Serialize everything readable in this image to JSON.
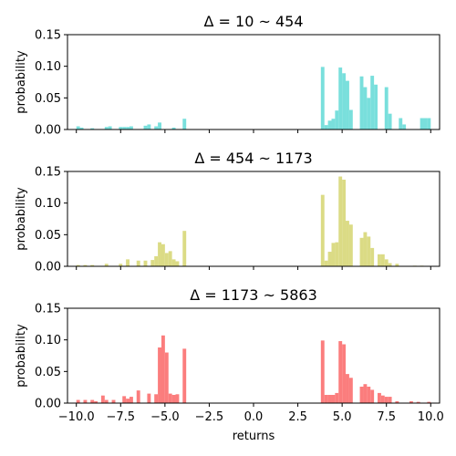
{
  "chart_data": {
    "type": "bar",
    "xlabel": "returns",
    "ylabel": "probability",
    "xlim": [
      -10.5,
      10.5
    ],
    "ylim": [
      0,
      0.15
    ],
    "bin_width": 0.2,
    "x_ticks": [
      -10,
      -7.5,
      -5,
      -2.5,
      0,
      2.5,
      5,
      7.5,
      10
    ],
    "x_tick_labels": [
      "−10.0",
      "−7.5",
      "−5.0",
      "−2.5",
      "0.0",
      "2.5",
      "5.0",
      "7.5",
      "10.0"
    ],
    "y_ticks": [
      0,
      0.05,
      0.1,
      0.15
    ],
    "y_tick_labels": [
      "0.00",
      "0.05",
      "0.10",
      "0.15"
    ],
    "panels": [
      {
        "title": "Δ = 10 ~ 454",
        "color": "#79dfdc",
        "bars": [
          {
            "x": -9.9,
            "y": 0.005
          },
          {
            "x": -9.7,
            "y": 0.003
          },
          {
            "x": -9.1,
            "y": 0.002
          },
          {
            "x": -8.3,
            "y": 0.004
          },
          {
            "x": -8.1,
            "y": 0.005
          },
          {
            "x": -7.5,
            "y": 0.004
          },
          {
            "x": -7.3,
            "y": 0.004
          },
          {
            "x": -7.1,
            "y": 0.004
          },
          {
            "x": -6.9,
            "y": 0.005
          },
          {
            "x": -6.1,
            "y": 0.006
          },
          {
            "x": -5.9,
            "y": 0.008
          },
          {
            "x": -5.5,
            "y": 0.005
          },
          {
            "x": -5.3,
            "y": 0.011
          },
          {
            "x": -4.5,
            "y": 0.003
          },
          {
            "x": -3.9,
            "y": 0.017
          },
          {
            "x": 3.9,
            "y": 0.099
          },
          {
            "x": 4.1,
            "y": 0.007
          },
          {
            "x": 4.3,
            "y": 0.014
          },
          {
            "x": 4.5,
            "y": 0.017
          },
          {
            "x": 4.7,
            "y": 0.03
          },
          {
            "x": 4.9,
            "y": 0.098
          },
          {
            "x": 5.1,
            "y": 0.089
          },
          {
            "x": 5.3,
            "y": 0.077
          },
          {
            "x": 5.5,
            "y": 0.031
          },
          {
            "x": 6.1,
            "y": 0.084
          },
          {
            "x": 6.3,
            "y": 0.067
          },
          {
            "x": 6.5,
            "y": 0.05
          },
          {
            "x": 6.7,
            "y": 0.085
          },
          {
            "x": 6.9,
            "y": 0.071
          },
          {
            "x": 7.5,
            "y": 0.067
          },
          {
            "x": 7.7,
            "y": 0.025
          },
          {
            "x": 8.3,
            "y": 0.018
          },
          {
            "x": 8.5,
            "y": 0.008
          },
          {
            "x": 9.5,
            "y": 0.018
          },
          {
            "x": 9.7,
            "y": 0.018
          },
          {
            "x": 9.9,
            "y": 0.018
          }
        ]
      },
      {
        "title": "Δ = 454 ~ 1173",
        "color": "#dbdb85",
        "bars": [
          {
            "x": -9.9,
            "y": 0.002
          },
          {
            "x": -9.5,
            "y": 0.002
          },
          {
            "x": -9.1,
            "y": 0.002
          },
          {
            "x": -8.3,
            "y": 0.004
          },
          {
            "x": -7.5,
            "y": 0.004
          },
          {
            "x": -7.1,
            "y": 0.011
          },
          {
            "x": -6.5,
            "y": 0.009
          },
          {
            "x": -6.1,
            "y": 0.009
          },
          {
            "x": -5.7,
            "y": 0.01
          },
          {
            "x": -5.5,
            "y": 0.016
          },
          {
            "x": -5.3,
            "y": 0.038
          },
          {
            "x": -5.1,
            "y": 0.035
          },
          {
            "x": -4.9,
            "y": 0.021
          },
          {
            "x": -4.7,
            "y": 0.024
          },
          {
            "x": -4.5,
            "y": 0.011
          },
          {
            "x": -4.3,
            "y": 0.008
          },
          {
            "x": -3.9,
            "y": 0.056
          },
          {
            "x": 3.9,
            "y": 0.113
          },
          {
            "x": 4.1,
            "y": 0.009
          },
          {
            "x": 4.3,
            "y": 0.023
          },
          {
            "x": 4.5,
            "y": 0.037
          },
          {
            "x": 4.7,
            "y": 0.038
          },
          {
            "x": 4.9,
            "y": 0.142
          },
          {
            "x": 5.1,
            "y": 0.137
          },
          {
            "x": 5.3,
            "y": 0.072
          },
          {
            "x": 5.5,
            "y": 0.066
          },
          {
            "x": 6.1,
            "y": 0.045
          },
          {
            "x": 6.3,
            "y": 0.054
          },
          {
            "x": 6.5,
            "y": 0.047
          },
          {
            "x": 6.7,
            "y": 0.029
          },
          {
            "x": 7.1,
            "y": 0.019
          },
          {
            "x": 7.3,
            "y": 0.019
          },
          {
            "x": 7.5,
            "y": 0.011
          },
          {
            "x": 7.7,
            "y": 0.005
          },
          {
            "x": 8.1,
            "y": 0.004
          },
          {
            "x": 9.1,
            "y": 0.001
          },
          {
            "x": 9.5,
            "y": 0.001
          }
        ]
      },
      {
        "title": "Δ = 1173 ~ 5863",
        "color": "#fb7d7d",
        "bars": [
          {
            "x": -9.9,
            "y": 0.005
          },
          {
            "x": -9.5,
            "y": 0.005
          },
          {
            "x": -9.1,
            "y": 0.005
          },
          {
            "x": -8.9,
            "y": 0.003
          },
          {
            "x": -8.5,
            "y": 0.012
          },
          {
            "x": -8.3,
            "y": 0.005
          },
          {
            "x": -7.9,
            "y": 0.005
          },
          {
            "x": -7.3,
            "y": 0.011
          },
          {
            "x": -7.1,
            "y": 0.007
          },
          {
            "x": -6.9,
            "y": 0.01
          },
          {
            "x": -6.5,
            "y": 0.02
          },
          {
            "x": -5.9,
            "y": 0.015
          },
          {
            "x": -5.5,
            "y": 0.014
          },
          {
            "x": -5.3,
            "y": 0.088
          },
          {
            "x": -5.1,
            "y": 0.107
          },
          {
            "x": -4.9,
            "y": 0.08
          },
          {
            "x": -4.7,
            "y": 0.015
          },
          {
            "x": -4.5,
            "y": 0.013
          },
          {
            "x": -4.3,
            "y": 0.014
          },
          {
            "x": -3.9,
            "y": 0.086
          },
          {
            "x": 3.9,
            "y": 0.099
          },
          {
            "x": 4.1,
            "y": 0.013
          },
          {
            "x": 4.3,
            "y": 0.013
          },
          {
            "x": 4.5,
            "y": 0.013
          },
          {
            "x": 4.7,
            "y": 0.016
          },
          {
            "x": 4.9,
            "y": 0.098
          },
          {
            "x": 5.1,
            "y": 0.093
          },
          {
            "x": 5.3,
            "y": 0.046
          },
          {
            "x": 5.5,
            "y": 0.04
          },
          {
            "x": 6.1,
            "y": 0.026
          },
          {
            "x": 6.3,
            "y": 0.03
          },
          {
            "x": 6.5,
            "y": 0.026
          },
          {
            "x": 6.7,
            "y": 0.021
          },
          {
            "x": 7.1,
            "y": 0.016
          },
          {
            "x": 7.3,
            "y": 0.012
          },
          {
            "x": 7.5,
            "y": 0.01
          },
          {
            "x": 7.7,
            "y": 0.01
          },
          {
            "x": 8.1,
            "y": 0.003
          },
          {
            "x": 8.9,
            "y": 0.003
          },
          {
            "x": 9.3,
            "y": 0.002
          },
          {
            "x": 9.9,
            "y": 0.002
          }
        ]
      }
    ]
  }
}
